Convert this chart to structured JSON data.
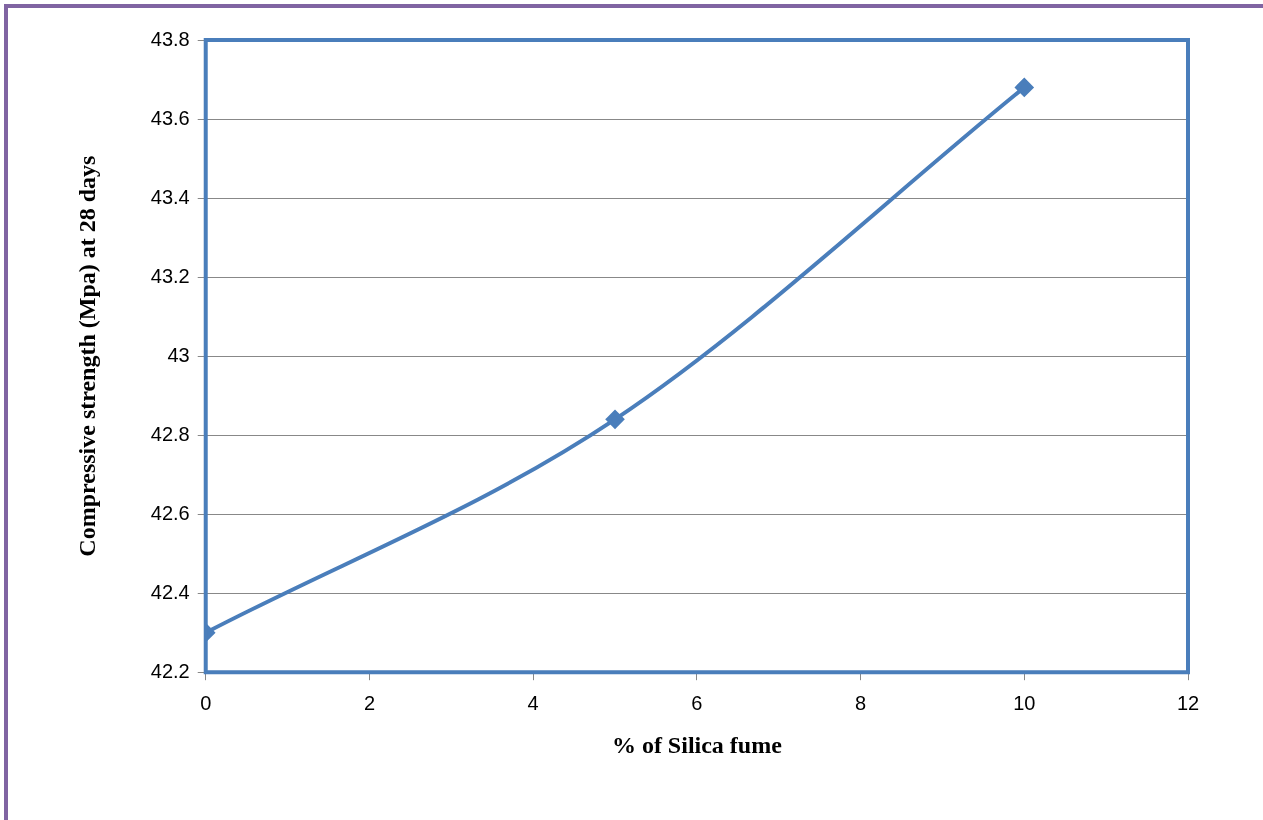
{
  "chart_data": {
    "type": "line",
    "xlabel": "% of Silica fume",
    "ylabel": "Compressive strength (Mpa) at 28 days",
    "x": [
      0,
      5,
      10
    ],
    "series": [
      {
        "color": "#4a7ebb",
        "values": [
          42.3,
          42.84,
          43.68
        ]
      }
    ],
    "xlim": [
      0,
      12
    ],
    "xticks": [
      0,
      2,
      4,
      6,
      8,
      10,
      12
    ],
    "ylim": [
      42.2,
      43.8
    ],
    "yticks": [
      42.2,
      42.4,
      42.6,
      42.8,
      43,
      43.2,
      43.4,
      43.6,
      43.8
    ],
    "grid": "y",
    "legend": false,
    "marker": "diamond",
    "line_style": "solid"
  }
}
